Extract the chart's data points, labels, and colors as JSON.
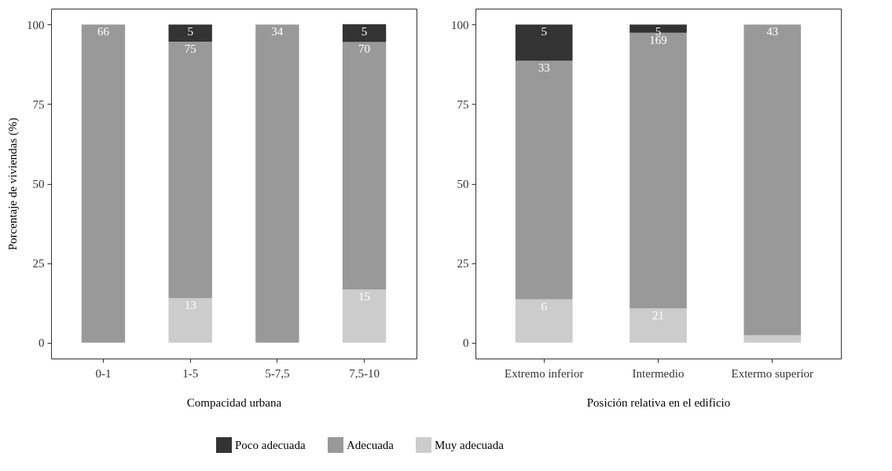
{
  "chart_data": [
    {
      "type": "bar",
      "stacked": true,
      "xlabel": "Compacidad urbana",
      "ylabel": "Porcentaje de viviendas (%)",
      "categories": [
        "0-1",
        "1-5",
        "5-7,5",
        "7,5-10"
      ],
      "ylim": [
        -5,
        105
      ],
      "yticks": [
        0,
        25,
        50,
        75,
        100
      ],
      "grid": false,
      "legend": "bottom",
      "series": [
        {
          "name": "Muy adecuada",
          "color": "#cccccc",
          "values": [
            null,
            14.0,
            null,
            16.7
          ]
        },
        {
          "name": "Adecuada",
          "color": "#999999",
          "values": [
            100,
            80.6,
            100,
            77.8
          ]
        },
        {
          "name": "Poco adecuada",
          "color": "#333333",
          "values": [
            null,
            5.4,
            null,
            5.6
          ]
        }
      ],
      "annotations": [
        {
          "text": "66",
          "x": "0-1",
          "y": 100
        },
        {
          "text": "13",
          "x": "1-5",
          "y": 14.0
        },
        {
          "text": "75",
          "x": "1-5",
          "y": 94.6
        },
        {
          "text": "5",
          "x": "1-5",
          "y": 100
        },
        {
          "text": "34",
          "x": "5-7,5",
          "y": 100
        },
        {
          "text": "15",
          "x": "7,5-10",
          "y": 16.7
        },
        {
          "text": "70",
          "x": "7,5-10",
          "y": 94.5
        },
        {
          "text": "5",
          "x": "7,5-10",
          "y": 100
        }
      ]
    },
    {
      "type": "bar",
      "stacked": true,
      "xlabel": "Posición relativa en el edificio",
      "categories": [
        "Extremo inferior",
        "Intermedio",
        "Extermo superior"
      ],
      "ylim": [
        -5,
        105
      ],
      "yticks": [
        0,
        25,
        50,
        75,
        100
      ],
      "grid": false,
      "series": [
        {
          "color": "#cccccc",
          "values": [
            13.6,
            10.8,
            2.3
          ]
        },
        {
          "color": "#999999",
          "values": [
            75.0,
            86.6,
            97.7
          ]
        },
        {
          "color": "#333333",
          "values": [
            11.4,
            2.6,
            null
          ]
        }
      ],
      "annotations": [
        {
          "text": "6",
          "x": "Extremo inferior",
          "y": 13.6
        },
        {
          "text": "33",
          "x": "Extremo inferior",
          "y": 88.6
        },
        {
          "text": "5",
          "x": "Extremo inferior",
          "y": 100
        },
        {
          "text": "21",
          "x": "Intermedio",
          "y": 10.8
        },
        {
          "text": "169",
          "x": "Intermedio",
          "y": 97.4
        },
        {
          "text": "5",
          "x": "Intermedio",
          "y": 100
        },
        {
          "text": "43",
          "x": "Extermo superior",
          "y": 100
        }
      ]
    }
  ]
}
